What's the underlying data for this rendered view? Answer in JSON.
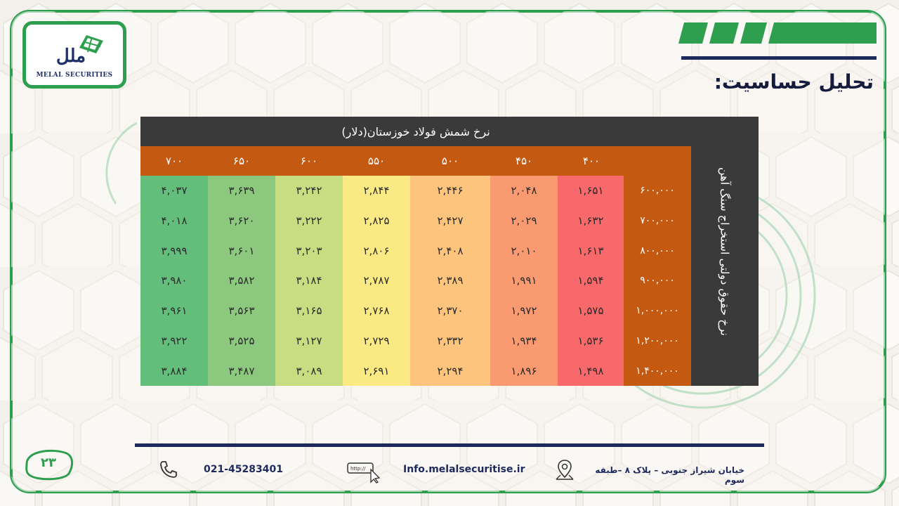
{
  "header": {
    "title": "تحلیل حساسیت:",
    "logo_text": "MELAL SECURITIES",
    "logo_mark": "ملل"
  },
  "table": {
    "column_title": "نرخ شمش فولاد خوزستان(دلار)",
    "row_title": "نرخ حقوق دولتی استخراج سنگ آهن",
    "columns": [
      "۷۰۰",
      "۶۵۰",
      "۶۰۰",
      "۵۵۰",
      "۵۰۰",
      "۴۵۰",
      "۴۰۰"
    ],
    "rows": [
      "۶۰۰,۰۰۰",
      "۷۰۰,۰۰۰",
      "۸۰۰,۰۰۰",
      "۹۰۰,۰۰۰",
      "۱,۰۰۰,۰۰۰",
      "۱,۲۰۰,۰۰۰",
      "۱,۴۰۰,۰۰۰"
    ],
    "values": [
      [
        "۴,۰۳۷",
        "۳,۶۳۹",
        "۳,۲۴۲",
        "۲,۸۴۴",
        "۲,۴۴۶",
        "۲,۰۴۸",
        "۱,۶۵۱"
      ],
      [
        "۴,۰۱۸",
        "۳,۶۲۰",
        "۳,۲۲۲",
        "۲,۸۲۵",
        "۲,۴۲۷",
        "۲,۰۲۹",
        "۱,۶۳۲"
      ],
      [
        "۳,۹۹۹",
        "۳,۶۰۱",
        "۳,۲۰۳",
        "۲,۸۰۶",
        "۲,۴۰۸",
        "۲,۰۱۰",
        "۱,۶۱۳"
      ],
      [
        "۳,۹۸۰",
        "۳,۵۸۲",
        "۳,۱۸۴",
        "۲,۷۸۷",
        "۲,۳۸۹",
        "۱,۹۹۱",
        "۱,۵۹۴"
      ],
      [
        "۳,۹۶۱",
        "۳,۵۶۳",
        "۳,۱۶۵",
        "۲,۷۶۸",
        "۲,۳۷۰",
        "۱,۹۷۲",
        "۱,۵۷۵"
      ],
      [
        "۳,۹۲۲",
        "۳,۵۲۵",
        "۳,۱۲۷",
        "۲,۷۲۹",
        "۲,۳۳۲",
        "۱,۹۳۴",
        "۱,۵۳۶"
      ],
      [
        "۳,۸۸۴",
        "۳,۴۸۷",
        "۳,۰۸۹",
        "۲,۶۹۱",
        "۲,۲۹۴",
        "۱,۸۹۶",
        "۱,۴۹۸"
      ]
    ],
    "column_colors": [
      "#63be7b",
      "#8cc97e",
      "#c7dd81",
      "#fbea84",
      "#fdc47d",
      "#f99a71",
      "#f8696b"
    ]
  },
  "footer": {
    "page_number": "۲۳",
    "phone": "021-45283401",
    "website": "Info.melalsecuritise.ir",
    "browser_label": "http://",
    "address": "خیابان شیراز جنوبی – پلاک ۸ –طبقه سوم"
  }
}
